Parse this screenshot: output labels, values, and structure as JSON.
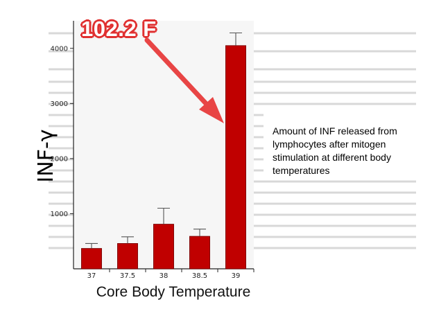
{
  "chart_data": {
    "type": "bar",
    "categories": [
      "37",
      "37.5",
      "38",
      "38.5",
      "39"
    ],
    "values": [
      370,
      460,
      810,
      590,
      4050
    ],
    "errors": [
      90,
      120,
      290,
      130,
      230
    ],
    "ylabel": "INF-γ",
    "ylabel_unit": "",
    "xlabel": "Core Body Temperature",
    "ylim": [
      0,
      4500
    ],
    "yticks": [
      1000,
      2000,
      3000,
      4000
    ],
    "bar_color": "#c00000",
    "grid": false
  },
  "annotation": {
    "callout": "102.2 F",
    "callout_color": "#e03030",
    "note": "Amount of INF released from lymphocytes after mitogen stimulation at different body temperatures"
  }
}
